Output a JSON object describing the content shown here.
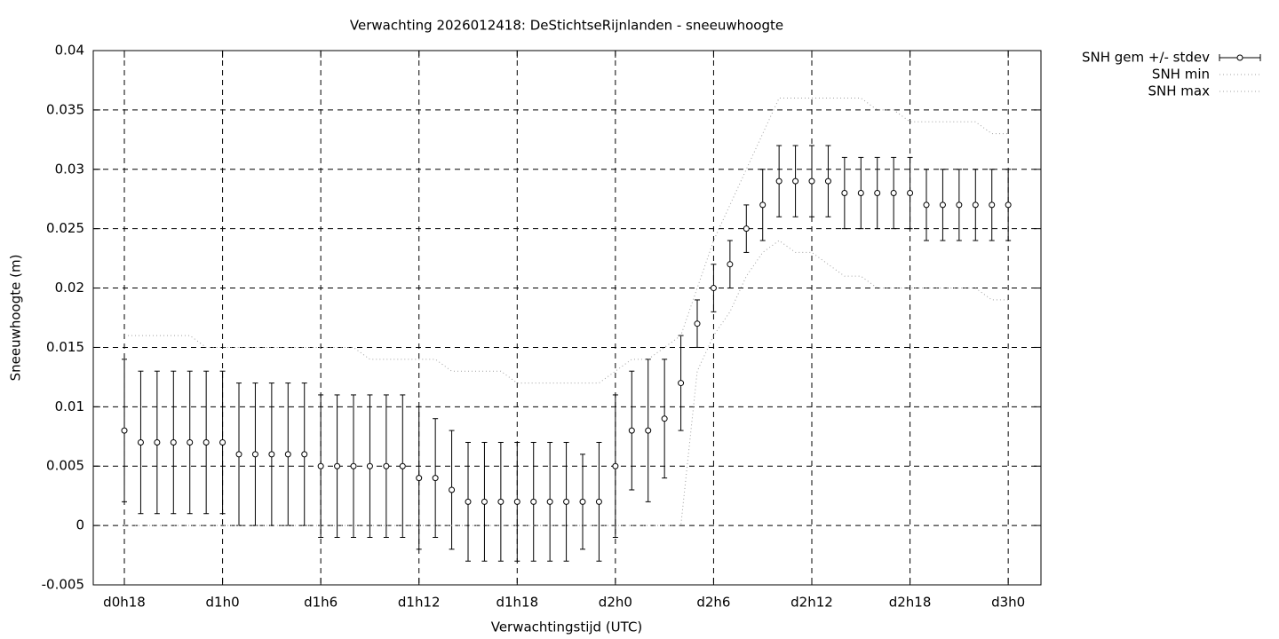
{
  "chart_data": {
    "type": "line",
    "title": "Verwachting 2026012418: DeStichtseRijnlanden - sneeuwhoogte",
    "xlabel": "Verwachtingstijd (UTC)",
    "ylabel": "Sneeuwhoogte (m)",
    "x": [
      18,
      19,
      20,
      21,
      22,
      23,
      24,
      25,
      26,
      27,
      28,
      29,
      30,
      31,
      32,
      33,
      34,
      35,
      36,
      37,
      38,
      39,
      40,
      41,
      42,
      43,
      44,
      45,
      46,
      47,
      48,
      49,
      50,
      51,
      52,
      53,
      54,
      55,
      56,
      57,
      58,
      59,
      60,
      61,
      62,
      63,
      64,
      65,
      66,
      67,
      68,
      69,
      70,
      71,
      72
    ],
    "series": [
      {
        "name": "SNH gem +/- stdev",
        "color": "#000000",
        "values": [
          0.008,
          0.007,
          0.007,
          0.007,
          0.007,
          0.007,
          0.007,
          0.006,
          0.006,
          0.006,
          0.006,
          0.006,
          0.005,
          0.005,
          0.005,
          0.005,
          0.005,
          0.005,
          0.004,
          0.004,
          0.003,
          0.002,
          0.002,
          0.002,
          0.002,
          0.002,
          0.002,
          0.002,
          0.002,
          0.002,
          0.005,
          0.008,
          0.008,
          0.009,
          0.012,
          0.017,
          0.02,
          0.022,
          0.025,
          0.027,
          0.029,
          0.029,
          0.029,
          0.029,
          0.028,
          0.028,
          0.028,
          0.028,
          0.028,
          0.027,
          0.027,
          0.027,
          0.027,
          0.027,
          0.027
        ],
        "errors": [
          0.006,
          0.006,
          0.006,
          0.006,
          0.006,
          0.006,
          0.006,
          0.006,
          0.006,
          0.006,
          0.006,
          0.006,
          0.006,
          0.006,
          0.006,
          0.006,
          0.006,
          0.006,
          0.006,
          0.005,
          0.005,
          0.005,
          0.005,
          0.005,
          0.005,
          0.005,
          0.005,
          0.005,
          0.004,
          0.005,
          0.006,
          0.005,
          0.006,
          0.005,
          0.004,
          0.002,
          0.002,
          0.002,
          0.002,
          0.003,
          0.003,
          0.003,
          0.003,
          0.003,
          0.003,
          0.003,
          0.003,
          0.003,
          0.003,
          0.003,
          0.003,
          0.003,
          0.003,
          0.003,
          0.003
        ]
      },
      {
        "name": "SNH min",
        "color": "#a0a0a0",
        "values": [
          0,
          0,
          0,
          0,
          0,
          0,
          0,
          0,
          0,
          0,
          0,
          0,
          0,
          0,
          0,
          0,
          0,
          0,
          0,
          0,
          0,
          0,
          0,
          0,
          0,
          0,
          0,
          0,
          0,
          0,
          0,
          0,
          0,
          0,
          0,
          0.013,
          0.016,
          0.018,
          0.021,
          0.023,
          0.024,
          0.023,
          0.023,
          0.022,
          0.021,
          0.021,
          0.02,
          0.02,
          0.02,
          0.02,
          0.02,
          0.02,
          0.02,
          0.019,
          0.019
        ]
      },
      {
        "name": "SNH max",
        "color": "#a0a0a0",
        "values": [
          0.016,
          0.016,
          0.016,
          0.016,
          0.016,
          0.015,
          0.015,
          0.015,
          0.015,
          0.015,
          0.015,
          0.015,
          0.015,
          0.015,
          0.015,
          0.014,
          0.014,
          0.014,
          0.014,
          0.014,
          0.013,
          0.013,
          0.013,
          0.013,
          0.012,
          0.012,
          0.012,
          0.012,
          0.012,
          0.012,
          0.013,
          0.014,
          0.014,
          0.015,
          0.016,
          0.02,
          0.024,
          0.027,
          0.03,
          0.033,
          0.036,
          0.036,
          0.036,
          0.036,
          0.036,
          0.036,
          0.035,
          0.035,
          0.034,
          0.034,
          0.034,
          0.034,
          0.034,
          0.033,
          0.033
        ]
      }
    ],
    "xlim": [
      16.1,
      74.0
    ],
    "xticks": [
      {
        "value": 18,
        "label": "d0h18"
      },
      {
        "value": 24,
        "label": "d1h0"
      },
      {
        "value": 30,
        "label": "d1h6"
      },
      {
        "value": 36,
        "label": "d1h12"
      },
      {
        "value": 42,
        "label": "d1h18"
      },
      {
        "value": 48,
        "label": "d2h0"
      },
      {
        "value": 54,
        "label": "d2h6"
      },
      {
        "value": 60,
        "label": "d2h12"
      },
      {
        "value": 66,
        "label": "d2h18"
      },
      {
        "value": 72,
        "label": "d3h0"
      }
    ],
    "ylim": [
      -0.005,
      0.04
    ],
    "yticks": [
      -0.005,
      0,
      0.005,
      0.01,
      0.015,
      0.02,
      0.025,
      0.03,
      0.035,
      0.04
    ],
    "grid": true,
    "legend": "outside-top-right"
  }
}
